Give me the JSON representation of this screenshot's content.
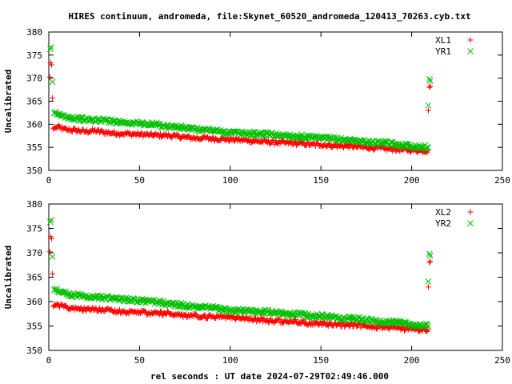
{
  "title": "HIRES continuum, andromeda, file:Skynet_60520_andromeda_120413_70263.cyb.txt",
  "xlabel": "rel seconds : UT date 2024-07-29T02:49:46.000",
  "colors": {
    "red": "#ff0000",
    "green": "#00c000"
  },
  "chart_data": [
    {
      "type": "scatter",
      "ylabel": "Uncalibrated",
      "xlim": [
        0,
        250
      ],
      "ylim": [
        350,
        380
      ],
      "xticks": [
        0,
        50,
        100,
        150,
        200,
        250
      ],
      "yticks": [
        350,
        355,
        360,
        365,
        370,
        375,
        380
      ],
      "grid": false,
      "legend_position": "top-right",
      "series": [
        {
          "name": "XL1",
          "marker": "plus",
          "color": "#ff0000",
          "points": [
            [
              0.5,
              370.2
            ],
            [
              1,
              373.3
            ],
            [
              1.5,
              372.9
            ],
            [
              2,
              365.7
            ],
            [
              2.5,
              359.0
            ],
            [
              3,
              359.2
            ],
            [
              5,
              359.4
            ],
            [
              8,
              359.0
            ],
            [
              10,
              358.8
            ],
            [
              15,
              358.7
            ],
            [
              20,
              358.4
            ],
            [
              25,
              358.6
            ],
            [
              30,
              358.3
            ],
            [
              35,
              358.1
            ],
            [
              40,
              358.0
            ],
            [
              45,
              357.9
            ],
            [
              50,
              357.8
            ],
            [
              55,
              357.7
            ],
            [
              60,
              357.6
            ],
            [
              65,
              357.6
            ],
            [
              70,
              357.4
            ],
            [
              75,
              357.2
            ],
            [
              80,
              357.0
            ],
            [
              85,
              357.0
            ],
            [
              90,
              356.9
            ],
            [
              95,
              356.8
            ],
            [
              100,
              356.7
            ],
            [
              105,
              356.6
            ],
            [
              110,
              356.5
            ],
            [
              115,
              356.3
            ],
            [
              120,
              356.2
            ],
            [
              125,
              356.1
            ],
            [
              130,
              356.0
            ],
            [
              135,
              355.9
            ],
            [
              140,
              355.8
            ],
            [
              145,
              355.6
            ],
            [
              150,
              355.6
            ],
            [
              155,
              355.4
            ],
            [
              160,
              355.3
            ],
            [
              165,
              355.3
            ],
            [
              170,
              355.1
            ],
            [
              175,
              355.0
            ],
            [
              180,
              354.9
            ],
            [
              185,
              354.7
            ],
            [
              190,
              354.6
            ],
            [
              195,
              354.5
            ],
            [
              200,
              354.4
            ],
            [
              205,
              354.3
            ],
            [
              209,
              354.3
            ],
            [
              209.2,
              363.0
            ],
            [
              209.8,
              368.0
            ],
            [
              210.2,
              368.3
            ]
          ]
        },
        {
          "name": "YR1",
          "marker": "cross",
          "color": "#00c000",
          "points": [
            [
              0.8,
              376.3
            ],
            [
              1.2,
              376.7
            ],
            [
              2,
              369.2
            ],
            [
              3,
              362.4
            ],
            [
              4,
              362.2
            ],
            [
              5,
              362.1
            ],
            [
              8,
              361.8
            ],
            [
              10,
              361.6
            ],
            [
              15,
              361.3
            ],
            [
              20,
              361.0
            ],
            [
              25,
              360.9
            ],
            [
              30,
              360.9
            ],
            [
              35,
              360.7
            ],
            [
              40,
              360.5
            ],
            [
              45,
              360.3
            ],
            [
              50,
              360.2
            ],
            [
              55,
              360.0
            ],
            [
              60,
              359.9
            ],
            [
              65,
              359.6
            ],
            [
              70,
              359.4
            ],
            [
              75,
              359.2
            ],
            [
              80,
              358.9
            ],
            [
              85,
              358.8
            ],
            [
              90,
              358.7
            ],
            [
              95,
              358.4
            ],
            [
              100,
              358.2
            ],
            [
              105,
              358.1
            ],
            [
              110,
              358.0
            ],
            [
              115,
              357.9
            ],
            [
              120,
              357.9
            ],
            [
              125,
              357.7
            ],
            [
              130,
              357.6
            ],
            [
              135,
              357.4
            ],
            [
              140,
              357.3
            ],
            [
              145,
              357.1
            ],
            [
              150,
              357.0
            ],
            [
              155,
              356.9
            ],
            [
              160,
              356.7
            ],
            [
              165,
              356.6
            ],
            [
              170,
              356.4
            ],
            [
              175,
              356.2
            ],
            [
              180,
              356.0
            ],
            [
              185,
              355.9
            ],
            [
              190,
              355.7
            ],
            [
              195,
              355.5
            ],
            [
              200,
              355.3
            ],
            [
              205,
              355.1
            ],
            [
              209,
              355.0
            ],
            [
              209.2,
              364.1
            ],
            [
              209.8,
              369.8
            ],
            [
              210.2,
              369.4
            ]
          ]
        }
      ]
    },
    {
      "type": "scatter",
      "ylabel": "Uncalibrated",
      "xlim": [
        0,
        250
      ],
      "ylim": [
        350,
        380
      ],
      "xticks": [
        0,
        50,
        100,
        150,
        200,
        250
      ],
      "yticks": [
        350,
        355,
        360,
        365,
        370,
        375,
        380
      ],
      "grid": false,
      "legend_position": "top-right",
      "series": [
        {
          "name": "XL2",
          "marker": "plus",
          "color": "#ff0000",
          "points": [
            [
              0.5,
              370.2
            ],
            [
              1,
              373.3
            ],
            [
              1.5,
              372.9
            ],
            [
              2,
              365.7
            ],
            [
              2.5,
              359.0
            ],
            [
              3,
              359.2
            ],
            [
              5,
              359.4
            ],
            [
              8,
              359.0
            ],
            [
              10,
              358.8
            ],
            [
              15,
              358.7
            ],
            [
              20,
              358.4
            ],
            [
              25,
              358.6
            ],
            [
              30,
              358.3
            ],
            [
              35,
              358.1
            ],
            [
              40,
              358.0
            ],
            [
              45,
              357.9
            ],
            [
              50,
              357.8
            ],
            [
              55,
              357.7
            ],
            [
              60,
              357.6
            ],
            [
              65,
              357.6
            ],
            [
              70,
              357.4
            ],
            [
              75,
              357.2
            ],
            [
              80,
              357.0
            ],
            [
              85,
              357.0
            ],
            [
              90,
              356.9
            ],
            [
              95,
              356.8
            ],
            [
              100,
              356.7
            ],
            [
              105,
              356.6
            ],
            [
              110,
              356.5
            ],
            [
              115,
              356.3
            ],
            [
              120,
              356.2
            ],
            [
              125,
              356.1
            ],
            [
              130,
              356.0
            ],
            [
              135,
              355.9
            ],
            [
              140,
              355.8
            ],
            [
              145,
              355.6
            ],
            [
              150,
              355.6
            ],
            [
              155,
              355.4
            ],
            [
              160,
              355.3
            ],
            [
              165,
              355.3
            ],
            [
              170,
              355.1
            ],
            [
              175,
              355.0
            ],
            [
              180,
              354.9
            ],
            [
              185,
              354.7
            ],
            [
              190,
              354.6
            ],
            [
              195,
              354.5
            ],
            [
              200,
              354.4
            ],
            [
              205,
              354.3
            ],
            [
              209,
              354.3
            ],
            [
              209.2,
              363.0
            ],
            [
              209.8,
              368.0
            ],
            [
              210.2,
              368.3
            ]
          ]
        },
        {
          "name": "YR2",
          "marker": "cross",
          "color": "#00c000",
          "points": [
            [
              0.8,
              376.3
            ],
            [
              1.2,
              376.7
            ],
            [
              2,
              369.2
            ],
            [
              3,
              362.4
            ],
            [
              4,
              362.2
            ],
            [
              5,
              362.1
            ],
            [
              8,
              361.8
            ],
            [
              10,
              361.6
            ],
            [
              15,
              361.3
            ],
            [
              20,
              361.0
            ],
            [
              25,
              360.9
            ],
            [
              30,
              360.9
            ],
            [
              35,
              360.7
            ],
            [
              40,
              360.5
            ],
            [
              45,
              360.3
            ],
            [
              50,
              360.2
            ],
            [
              55,
              360.0
            ],
            [
              60,
              359.9
            ],
            [
              65,
              359.6
            ],
            [
              70,
              359.4
            ],
            [
              75,
              359.2
            ],
            [
              80,
              358.9
            ],
            [
              85,
              358.8
            ],
            [
              90,
              358.7
            ],
            [
              95,
              358.4
            ],
            [
              100,
              358.2
            ],
            [
              105,
              358.1
            ],
            [
              110,
              358.0
            ],
            [
              115,
              357.9
            ],
            [
              120,
              357.9
            ],
            [
              125,
              357.7
            ],
            [
              130,
              357.6
            ],
            [
              135,
              357.4
            ],
            [
              140,
              357.3
            ],
            [
              145,
              357.1
            ],
            [
              150,
              357.0
            ],
            [
              155,
              356.9
            ],
            [
              160,
              356.7
            ],
            [
              165,
              356.6
            ],
            [
              170,
              356.4
            ],
            [
              175,
              356.2
            ],
            [
              180,
              356.0
            ],
            [
              185,
              355.9
            ],
            [
              190,
              355.7
            ],
            [
              195,
              355.5
            ],
            [
              200,
              355.3
            ],
            [
              205,
              355.1
            ],
            [
              209,
              355.0
            ],
            [
              209.2,
              364.1
            ],
            [
              209.8,
              369.8
            ],
            [
              210.2,
              369.4
            ]
          ]
        }
      ]
    }
  ]
}
